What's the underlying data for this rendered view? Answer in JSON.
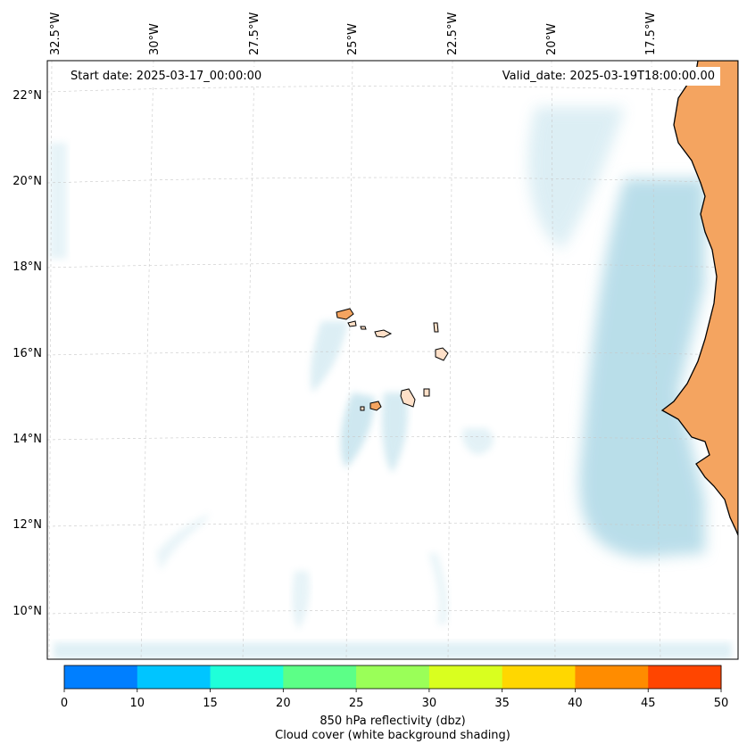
{
  "header": {
    "start_date": "Start date: 2025-03-17_00:00:00",
    "valid_date": "Valid_date: 2025-03-19T18:00:00.00"
  },
  "map": {
    "lon_labels": [
      "32.5°W",
      "30°W",
      "27.5°W",
      "25°W",
      "22.5°W",
      "20°W",
      "17.5°W"
    ],
    "lat_labels": [
      "22°N",
      "20°N",
      "18°N",
      "16°N",
      "14°N",
      "12°N",
      "10°N"
    ],
    "colors": {
      "land_africa": "#f4a460",
      "land_islands": "#ffe0c8",
      "coastline": "#000000",
      "cloud_shading": "#add8e6",
      "gridline": "#c8c8c8"
    }
  },
  "colorbar": {
    "ticks": [
      "0",
      "10",
      "15",
      "20",
      "25",
      "30",
      "35",
      "40",
      "45",
      "50"
    ],
    "colors": [
      "#007fff",
      "#00c5ff",
      "#1fffd9",
      "#5cff87",
      "#9aff58",
      "#d9ff1f",
      "#ffd700",
      "#ff8c00",
      "#ff4500"
    ],
    "label_line1": "850 hPa reflectivity (dbz)",
    "label_line2": "Cloud cover (white background shading)"
  }
}
